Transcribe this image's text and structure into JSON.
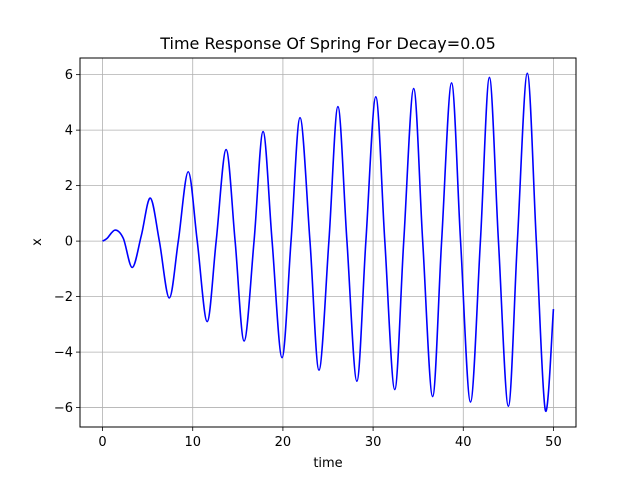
{
  "chart_data": {
    "type": "line",
    "title": "Time Response Of Spring For Decay=0.05",
    "xlabel": "time",
    "ylabel": "x",
    "xlim": [
      -2.5,
      52.5
    ],
    "ylim": [
      -6.7,
      6.6
    ],
    "grid": true,
    "xticks": [
      0,
      10,
      20,
      30,
      40,
      50
    ],
    "yticks": [
      -6,
      -4,
      -2,
      0,
      2,
      4,
      6
    ],
    "x_tick_labels": [
      "0",
      "10",
      "20",
      "30",
      "40",
      "50"
    ],
    "y_tick_labels": [
      "−6",
      "−4",
      "−2",
      "0",
      "2",
      "4",
      "6"
    ],
    "series": [
      {
        "name": "",
        "color": "#0000ff",
        "x": [
          0,
          0.5,
          1.4,
          2.3,
          3.3,
          4.3,
          5.3,
          6.3,
          7.4,
          8.4,
          9.5,
          10.5,
          11.6,
          12.6,
          13.7,
          14.7,
          15.7,
          16.8,
          17.8,
          18.8,
          19.9,
          20.9,
          21.9,
          23.0,
          24.0,
          25.1,
          26.1,
          27.1,
          28.2,
          29.2,
          30.3,
          31.3,
          32.4,
          33.4,
          34.5,
          35.5,
          36.6,
          37.6,
          38.7,
          39.7,
          40.8,
          41.9,
          42.9,
          43.9,
          45.0,
          46.0,
          47.1,
          48.1,
          49.1,
          50.0
        ],
        "y": [
          0,
          0.1,
          0.4,
          0.1,
          -0.95,
          0.2,
          1.55,
          0.0,
          -2.05,
          0.0,
          2.5,
          0.0,
          -2.9,
          0.0,
          3.3,
          0.0,
          -3.6,
          0.0,
          3.95,
          0.0,
          -4.2,
          0.0,
          4.45,
          0.0,
          -4.65,
          0.0,
          4.85,
          0.0,
          -5.05,
          0.0,
          5.2,
          0.0,
          -5.35,
          0.0,
          5.5,
          0.0,
          -5.6,
          0.0,
          5.7,
          0.0,
          -5.8,
          0.0,
          5.9,
          0.0,
          -5.95,
          0.0,
          6.05,
          0.0,
          -6.1,
          -2.45
        ]
      }
    ]
  }
}
